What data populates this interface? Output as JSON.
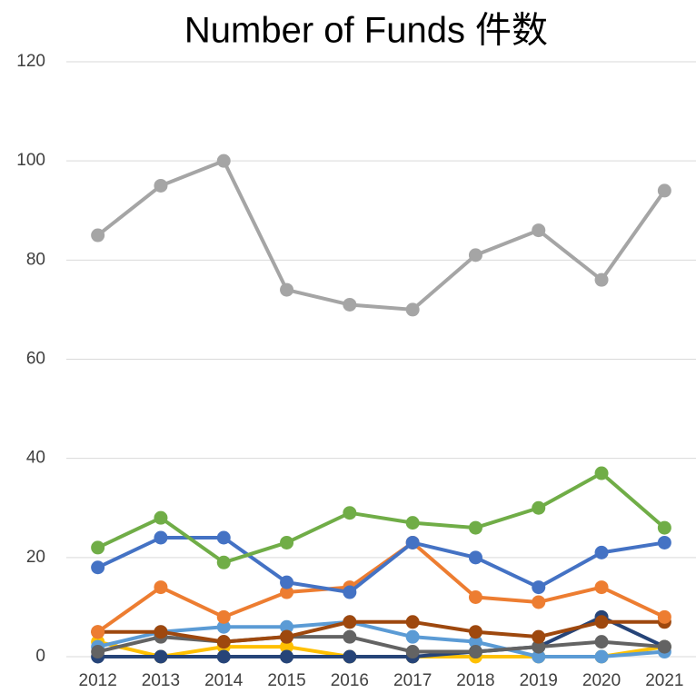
{
  "chart_data": {
    "type": "line",
    "title": "Number of Funds 件数",
    "categories": [
      "2012",
      "2013",
      "2014",
      "2015",
      "2016",
      "2017",
      "2018",
      "2019",
      "2020",
      "2021"
    ],
    "ylim": [
      0,
      120
    ],
    "yticks": [
      0,
      20,
      40,
      60,
      80,
      100,
      120
    ],
    "grid": true,
    "series": [
      {
        "color": "#ffc000",
        "values": [
          3,
          0,
          2,
          2,
          0,
          0,
          0,
          0,
          0,
          2
        ]
      },
      {
        "color": "#264478",
        "values": [
          0,
          0,
          0,
          0,
          0,
          0,
          1,
          2,
          8,
          2
        ]
      },
      {
        "color": "#5b9bd5",
        "values": [
          2,
          5,
          6,
          6,
          7,
          4,
          3,
          0,
          0,
          1
        ]
      },
      {
        "color": "#636363",
        "values": [
          1,
          4,
          3,
          4,
          4,
          1,
          1,
          2,
          3,
          2
        ]
      },
      {
        "color": "#9e480e",
        "values": [
          5,
          5,
          3,
          4,
          7,
          7,
          5,
          4,
          7,
          7
        ]
      },
      {
        "color": "#ed7d31",
        "values": [
          5,
          14,
          8,
          13,
          14,
          23,
          12,
          11,
          14,
          8
        ]
      },
      {
        "color": "#4472c4",
        "values": [
          18,
          24,
          24,
          15,
          13,
          23,
          20,
          14,
          21,
          23
        ]
      },
      {
        "color": "#70ad47",
        "values": [
          22,
          28,
          19,
          23,
          29,
          27,
          26,
          30,
          37,
          26
        ]
      },
      {
        "color": "#a5a5a5",
        "values": [
          85,
          95,
          100,
          74,
          71,
          70,
          81,
          86,
          76,
          94
        ]
      }
    ]
  }
}
